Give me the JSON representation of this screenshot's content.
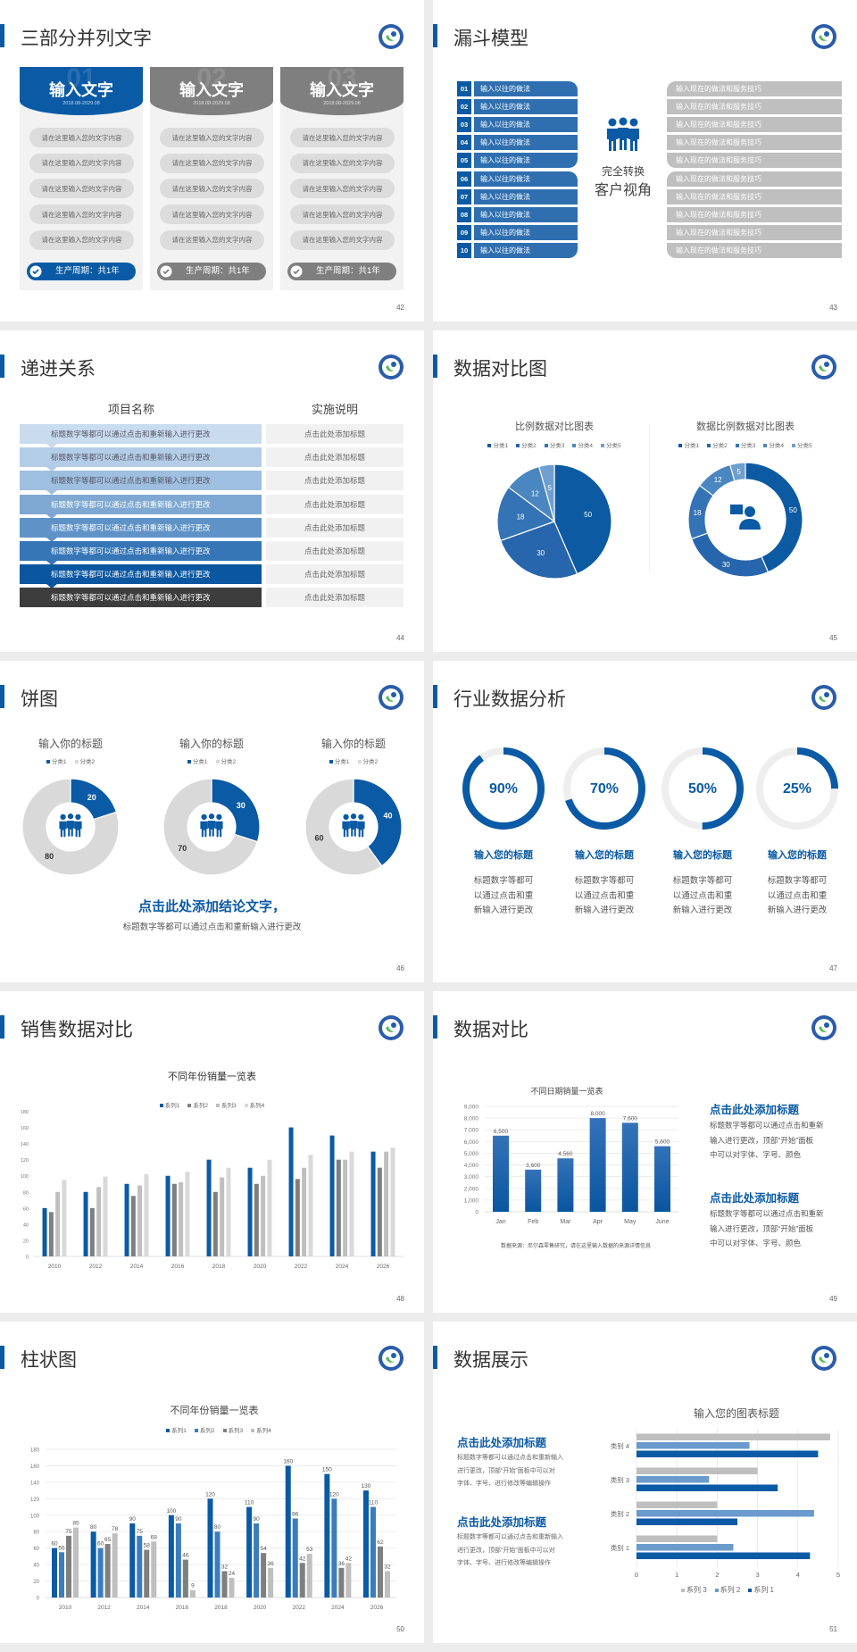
{
  "colors": {
    "blue": "#0a5aa5",
    "mid_blue": "#3a7dbd",
    "gray": "#7f7f7f",
    "light_gray": "#bfbfbf",
    "lighter_gray": "#d9d9d9",
    "page_bg": "#ececec"
  },
  "slides": [
    {
      "title": "三部分并列文字",
      "page": "42",
      "icon": "school-logo",
      "columns": [
        {
          "number": "01",
          "heading": "输入文字",
          "date": "2018.08-2029.08",
          "color": "#0a5aa5",
          "items": [
            "请在这里输入您的文字内容",
            "请在这里输入您的文字内容",
            "请在这里输入您的文字内容",
            "请在这里输入您的文字内容",
            "请在这里输入您的文字内容"
          ],
          "footer": "生产周期：共1年"
        },
        {
          "number": "02",
          "heading": "输入文字",
          "date": "2018.08-2029.08",
          "color": "#7f7f7f",
          "items": [
            "请在这里输入您的文字内容",
            "请在这里输入您的文字内容",
            "请在这里输入您的文字内容",
            "请在这里输入您的文字内容",
            "请在这里输入您的文字内容"
          ],
          "footer": "生产周期：共1年"
        },
        {
          "number": "03",
          "heading": "输入文字",
          "date": "2018.08-2029.08",
          "color": "#7f7f7f",
          "items": [
            "请在这里输入您的文字内容",
            "请在这里输入您的文字内容",
            "请在这里输入您的文字内容",
            "请在这里输入您的文字内容",
            "请在这里输入您的文字内容"
          ],
          "footer": "生产周期：共1年"
        }
      ]
    },
    {
      "title": "漏斗模型",
      "page": "43",
      "left_items": [
        {
          "num": "01",
          "text": "输入以往的做法"
        },
        {
          "num": "02",
          "text": "输入以往的做法"
        },
        {
          "num": "03",
          "text": "输入以往的做法"
        },
        {
          "num": "04",
          "text": "输入以往的做法"
        },
        {
          "num": "05",
          "text": "输入以往的做法"
        },
        {
          "num": "06",
          "text": "输入以往的做法"
        },
        {
          "num": "07",
          "text": "输入以往的做法"
        },
        {
          "num": "08",
          "text": "输入以往的做法"
        },
        {
          "num": "09",
          "text": "输入以往的做法"
        },
        {
          "num": "10",
          "text": "输入以往的做法"
        }
      ],
      "right_items": [
        "输入现在的做法和服务技巧",
        "输入现在的做法和服务技巧",
        "输入现在的做法和服务技巧",
        "输入现在的做法和服务技巧",
        "输入现在的做法和服务技巧",
        "输入现在的做法和服务技巧",
        "输入现在的做法和服务技巧",
        "输入现在的做法和服务技巧",
        "输入现在的做法和服务技巧",
        "输入现在的做法和服务技巧"
      ],
      "center_line1": "完全转换",
      "center_line2": "客户视角"
    },
    {
      "title": "递进关系",
      "page": "44",
      "headers": [
        "项目名称",
        "实施说明"
      ],
      "rows": [
        {
          "left": "标题数字等都可以通过点击和重新输入进行更改",
          "right": "点击此处添加标题",
          "color": "#c8dcee"
        },
        {
          "left": "标题数字等都可以通过点击和重新输入进行更改",
          "right": "点击此处添加标题",
          "color": "#b4cde7"
        },
        {
          "left": "标题数字等都可以通过点击和重新输入进行更改",
          "right": "点击此处添加标题",
          "color": "#9fbfe0"
        },
        {
          "left": "标题数字等都可以通过点击和重新输入进行更改",
          "right": "点击此处添加标题",
          "color": "#7ea8d2"
        },
        {
          "left": "标题数字等都可以通过点击和重新输入进行更改",
          "right": "点击此处添加标题",
          "color": "#5f93c8"
        },
        {
          "left": "标题数字等都可以通过点击和重新输入进行更改",
          "right": "点击此处添加标题",
          "color": "#3676b7"
        },
        {
          "left": "标题数字等都可以通过点击和重新输入进行更改",
          "right": "点击此处添加标题",
          "color": "#0a56a0"
        },
        {
          "left": "标题数字等都可以通过点击和重新输入进行更改",
          "right": "点击此处添加标题",
          "color": "#3d3d3d"
        }
      ]
    },
    {
      "title": "数据对比图",
      "page": "45"
    },
    {
      "title": "饼图",
      "page": "46",
      "conclusion_title": "点击此处添加结论文字，",
      "conclusion_text": "标题数字等都可以通过点击和重新输入进行更改"
    },
    {
      "title": "行业数据分析",
      "page": "47",
      "items": [
        {
          "value": 90,
          "percent": "90%",
          "title": "输入您的标题",
          "lines": [
            "标题数字等都可",
            "以通过点击和重",
            "新输入进行更改"
          ]
        },
        {
          "value": 70,
          "percent": "70%",
          "title": "输入您的标题",
          "lines": [
            "标题数字等都可",
            "以通过点击和重",
            "新输入进行更改"
          ]
        },
        {
          "value": 50,
          "percent": "50%",
          "title": "输入您的标题",
          "lines": [
            "标题数字等都可",
            "以通过点击和重",
            "新输入进行更改"
          ]
        },
        {
          "value": 25,
          "percent": "25%",
          "title": "输入您的标题",
          "lines": [
            "标题数字等都可",
            "以通过点击和重",
            "新输入进行更改"
          ]
        }
      ]
    },
    {
      "title": "销售数据对比",
      "page": "48"
    },
    {
      "title": "数据对比",
      "page": "49",
      "source": "数据来源：尼尔森零售研究，请在这里输入数据的来源详情信息",
      "blocks": [
        {
          "heading": "点击此处添加标题",
          "lines": [
            "标题数字等都可以通过点击和重新",
            "输入进行更改，顶部“开始”面板",
            "中可以对字体、字号、颜色"
          ]
        },
        {
          "heading": "点击此处添加标题",
          "lines": [
            "标题数字等都可以通过点击和重新",
            "输入进行更改，顶部“开始”面板",
            "中可以对字体、字号、颜色"
          ]
        }
      ]
    },
    {
      "title": "柱状图",
      "page": "50"
    },
    {
      "title": "数据展示",
      "page": "51",
      "blocks": [
        {
          "heading": "点击此处添加标题",
          "lines": [
            "标题数字等都可以通过点击和重新输入",
            "进行更改，顶部“开始”面板中可以对",
            "字体、字号、进行修改等编辑操作"
          ]
        },
        {
          "heading": "点击此处添加标题",
          "lines": [
            "标题数字等都可以通过点击和重新输入",
            "进行更改，顶部“开始”面板中可以对",
            "字体、字号、进行修改等编辑操作"
          ]
        }
      ]
    }
  ],
  "chart_data": [
    {
      "type": "pie",
      "title": "比例数据对比图表",
      "categories": [
        "分类1",
        "分类2",
        "分类3",
        "分类4",
        "分类5"
      ],
      "values": [
        50,
        30,
        18,
        12,
        5
      ],
      "colors": [
        "#0b5aa2",
        "#2766ac",
        "#3473b5",
        "#4a86c0",
        "#6e9fcf"
      ],
      "legend": "top"
    },
    {
      "type": "donut",
      "title": "数据比例数据对比图表",
      "categories": [
        "分类1",
        "分类2",
        "分类3",
        "分类4",
        "分类5"
      ],
      "values": [
        50,
        30,
        18,
        12,
        5
      ],
      "colors": [
        "#0b5aa2",
        "#2766ac",
        "#3473b5",
        "#4a86c0",
        "#6e9fcf"
      ],
      "legend": "top",
      "center_icon": "customer-service-icon"
    },
    {
      "type": "donut",
      "title": "输入你的标题",
      "categories": [
        "分类1",
        "分类2"
      ],
      "values": [
        20,
        80
      ],
      "colors": [
        "#0a5aa5",
        "#d9d9d9"
      ],
      "legend": "top",
      "center_icon": "team-icon"
    },
    {
      "type": "donut",
      "title": "输入你的标题",
      "categories": [
        "分类1",
        "分类2"
      ],
      "values": [
        30,
        70
      ],
      "colors": [
        "#0a5aa5",
        "#d9d9d9"
      ],
      "legend": "top",
      "center_icon": "team-icon"
    },
    {
      "type": "donut",
      "title": "输入你的标题",
      "categories": [
        "分类1",
        "分类2"
      ],
      "values": [
        40,
        60
      ],
      "colors": [
        "#0a5aa5",
        "#d9d9d9"
      ],
      "legend": "top",
      "center_icon": "team-icon"
    },
    {
      "type": "bar",
      "title": "不同年份销量一览表",
      "categories": [
        "2010",
        "2012",
        "2014",
        "2016",
        "2018",
        "2020",
        "2022",
        "2024",
        "2026"
      ],
      "series": [
        {
          "name": "系列1",
          "values": [
            60,
            80,
            90,
            100,
            120,
            110,
            160,
            150,
            130
          ]
        },
        {
          "name": "系列2",
          "values": [
            55,
            60,
            75,
            90,
            80,
            90,
            96,
            120,
            110
          ]
        },
        {
          "name": "系列3",
          "values": [
            80,
            86,
            88,
            92,
            98,
            100,
            110,
            120,
            130
          ]
        },
        {
          "name": "系列4",
          "values": [
            95,
            99,
            102,
            105,
            110,
            120,
            126,
            130,
            135
          ]
        }
      ],
      "colors": [
        "#0a5aa5",
        "#7f7f7f",
        "#bfbfbf",
        "#d9d9d9"
      ],
      "ylim": [
        0,
        180
      ],
      "yticks": [
        0,
        20,
        40,
        60,
        80,
        100,
        120,
        140,
        160,
        180
      ],
      "grid": false,
      "legend": "top"
    },
    {
      "type": "bar",
      "title": "不同日期销量一览表",
      "categories": [
        "Jan",
        "Feb",
        "Mar",
        "Apr",
        "May",
        "June"
      ],
      "values": [
        6500,
        3600,
        4560,
        8000,
        7600,
        5600
      ],
      "data_labels": [
        "6,500",
        "3,600",
        "4,560",
        "8,000",
        "7,600",
        "5,600"
      ],
      "colors": [
        "#0a55a0"
      ],
      "ylim": [
        0,
        9000
      ],
      "yticks": [
        0,
        1000,
        2000,
        3000,
        4000,
        5000,
        6000,
        7000,
        8000,
        9000
      ],
      "ytick_labels": [
        "0",
        "1,000",
        "2,000",
        "3,000",
        "4,000",
        "5,000",
        "6,000",
        "7,000",
        "8,000",
        "9,000"
      ],
      "grid": true
    },
    {
      "type": "bar",
      "title": "不同年份销量一览表",
      "categories": [
        "2010",
        "2012",
        "2014",
        "2016",
        "2018",
        "2020",
        "2022",
        "2024",
        "2026"
      ],
      "series": [
        {
          "name": "系列1",
          "values": [
            60,
            80,
            90,
            100,
            120,
            110,
            160,
            150,
            130
          ]
        },
        {
          "name": "系列2",
          "values": [
            55,
            60,
            75,
            90,
            80,
            90,
            96,
            120,
            110
          ]
        },
        {
          "name": "系列3",
          "values": [
            75,
            65,
            58,
            46,
            32,
            54,
            42,
            36,
            62
          ]
        },
        {
          "name": "系列4",
          "values": [
            85,
            78,
            68,
            9,
            24,
            36,
            53,
            42,
            32
          ]
        }
      ],
      "colors": [
        "#0a5aa5",
        "#3a7dbd",
        "#7f7f7f",
        "#bfbfbf"
      ],
      "ylim": [
        0,
        180
      ],
      "yticks": [
        0,
        20,
        40,
        60,
        80,
        100,
        120,
        140,
        160,
        180
      ],
      "grid": true,
      "data_labels": true,
      "legend": "top"
    },
    {
      "type": "hbar",
      "title": "输入您的图表标题",
      "categories": [
        "类别 1",
        "类别 2",
        "类别 3",
        "类别 4"
      ],
      "series": [
        {
          "name": "系列 1",
          "values": [
            4.3,
            2.5,
            3.5,
            4.5
          ]
        },
        {
          "name": "系列 2",
          "values": [
            2.4,
            4.4,
            1.8,
            2.8
          ]
        },
        {
          "name": "系列 3",
          "values": [
            2,
            2,
            3,
            4.8
          ]
        }
      ],
      "colors": [
        "#0a5aa5",
        "#6a9bcc",
        "#bfbfbf"
      ],
      "xlim": [
        0,
        5
      ],
      "xticks": [
        0,
        1,
        2,
        3,
        4,
        5
      ],
      "grid": true,
      "legend": "bottom"
    }
  ]
}
